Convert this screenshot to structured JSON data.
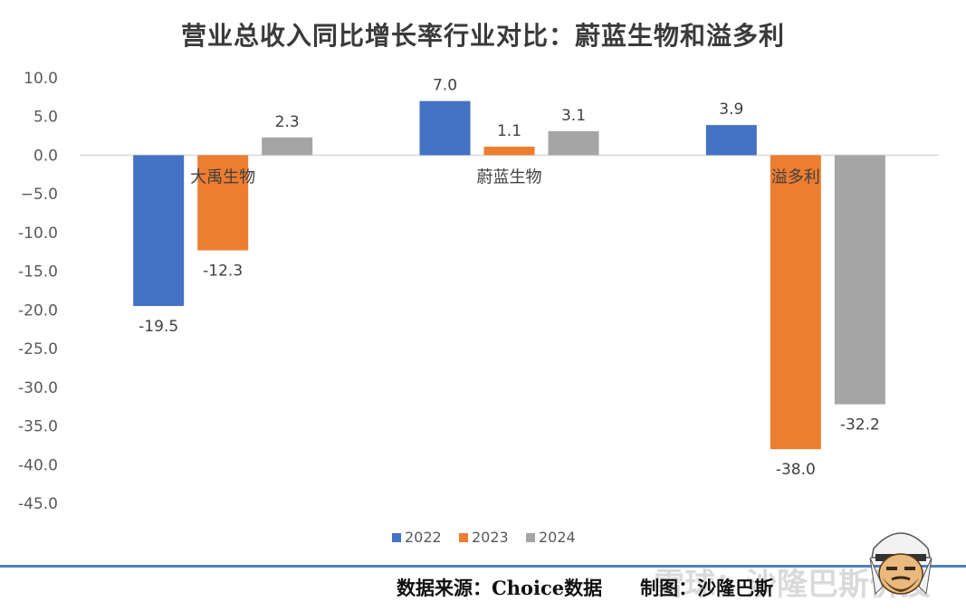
{
  "title": "营业总收入同比增长率行业对比：蔚蓝生物和溢多利",
  "chart_data": {
    "type": "bar",
    "categories": [
      "大禹生物",
      "蔚蓝生物",
      "溢多利"
    ],
    "series": [
      {
        "name": "2022",
        "color": "#4472c4",
        "values": [
          -19.5,
          7.0,
          3.9
        ]
      },
      {
        "name": "2023",
        "color": "#ed7d31",
        "values": [
          -12.3,
          1.1,
          -38.0
        ]
      },
      {
        "name": "2024",
        "color": "#a5a5a5",
        "values": [
          2.3,
          3.1,
          -32.2
        ]
      }
    ],
    "ylim": [
      -45,
      10
    ],
    "yticks": [
      "10.0",
      "5.0",
      "0.0",
      "−5.0",
      "-10.0",
      "-15.0",
      "-20.0",
      "-25.0",
      "-30.0",
      "-35.0",
      "-40.0",
      "-45.0"
    ],
    "data_labels": [
      [
        "-19.5",
        "7.0",
        "3.9"
      ],
      [
        "-12.3",
        "1.1",
        "-38.0"
      ],
      [
        "2.3",
        "3.1",
        "-32.2"
      ]
    ],
    "grid": false,
    "legend_position": "bottom"
  },
  "footer": {
    "source": "数据来源：Choice数据",
    "author": "制图：沙隆巴斯"
  },
  "watermark": "雪球：沙隆巴斯价投"
}
